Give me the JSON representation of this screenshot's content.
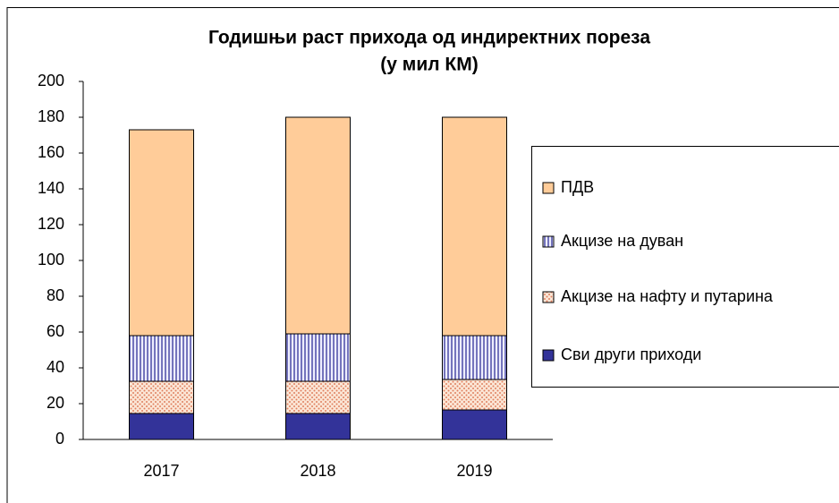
{
  "chart_data": {
    "type": "stacked_bar",
    "title": "Годишњи раст прихода од индиректних пореза",
    "subtitle": "(у мил КМ)",
    "categories": [
      "2017",
      "2018",
      "2019"
    ],
    "series": [
      {
        "name": "Сви други приходи",
        "color": "#333399",
        "pattern": "solid",
        "values": [
          14.5,
          14.5,
          16.5
        ]
      },
      {
        "name": "Акцизе на нафту и путарина",
        "color": "#e8a07a",
        "pattern": "dots",
        "values": [
          18,
          18,
          17
        ]
      },
      {
        "name": "Акцизе на дуван",
        "color": "#333399",
        "pattern": "vertical",
        "values": [
          25.5,
          26.5,
          24.5
        ]
      },
      {
        "name": "ПДВ",
        "color": "#ffcc99",
        "pattern": "solid",
        "values": [
          115,
          121,
          122
        ]
      }
    ],
    "ylim": [
      0,
      200
    ],
    "yticks": [
      0,
      20,
      40,
      60,
      80,
      100,
      120,
      140,
      160,
      180,
      200
    ],
    "grid": false,
    "legend": "right"
  }
}
